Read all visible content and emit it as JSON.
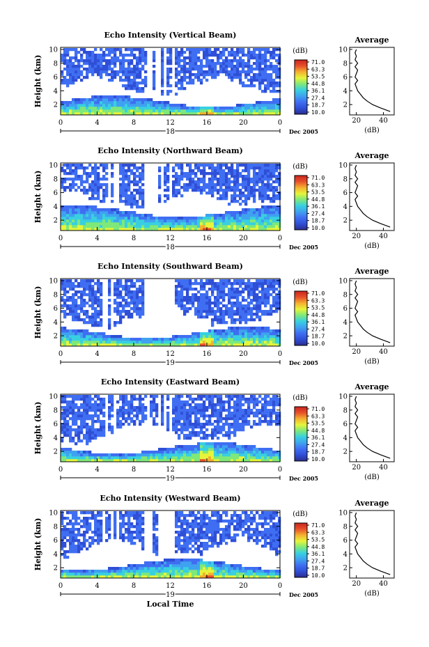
{
  "chart_data": [
    {
      "type": "heatmap",
      "title": "Echo Intensity (Vertical Beam)",
      "ylabel": "Height (km)",
      "ylim": [
        0.5,
        10.3
      ],
      "xlim": [
        0,
        24
      ],
      "x_ticks": [
        "0",
        "4",
        "8",
        "12",
        "16",
        "20",
        "0"
      ],
      "y_ticks": [
        "2",
        "4",
        "6",
        "8",
        "10"
      ],
      "day_label": "18",
      "date_label": "Dec 2005",
      "colorbar": {
        "unit": "(dB)",
        "ticks": [
          "71.0",
          "63.3",
          "53.5",
          "44.8",
          "36.1",
          "27.4",
          "18.7",
          "10.0"
        ]
      },
      "average": {
        "title": "Average",
        "xlabel": "(dB)",
        "x_ticks": [
          "20",
          "40"
        ],
        "y_ticks": [
          "2",
          "4",
          "6",
          "8",
          "10"
        ]
      }
    },
    {
      "type": "heatmap",
      "title": "Echo Intensity (Northward Beam)",
      "ylabel": "Height (km)",
      "ylim": [
        0.5,
        10.3
      ],
      "xlim": [
        0,
        24
      ],
      "x_ticks": [
        "0",
        "4",
        "8",
        "12",
        "16",
        "20",
        "0"
      ],
      "y_ticks": [
        "2",
        "4",
        "6",
        "8",
        "10"
      ],
      "day_label": "18",
      "date_label": "Dec 2005",
      "colorbar": {
        "unit": "(dB)",
        "ticks": [
          "71.0",
          "63.3",
          "53.5",
          "44.8",
          "36.1",
          "27.4",
          "18.7",
          "10.0"
        ]
      },
      "average": {
        "title": "Average",
        "xlabel": "(dB)",
        "x_ticks": [
          "20",
          "40"
        ],
        "y_ticks": [
          "2",
          "4",
          "6",
          "8",
          "10"
        ]
      }
    },
    {
      "type": "heatmap",
      "title": "Echo Intensity (Southward Beam)",
      "ylabel": "Height (km)",
      "ylim": [
        0.5,
        10.3
      ],
      "xlim": [
        0,
        24
      ],
      "x_ticks": [
        "0",
        "4",
        "8",
        "12",
        "16",
        "20",
        "0"
      ],
      "y_ticks": [
        "2",
        "4",
        "6",
        "8",
        "10"
      ],
      "day_label": "19",
      "date_label": "Dec 2005",
      "colorbar": {
        "unit": "(dB)",
        "ticks": [
          "71.0",
          "63.3",
          "53.5",
          "44.8",
          "36.1",
          "27.4",
          "18.7",
          "10.0"
        ]
      },
      "average": {
        "title": "Average",
        "xlabel": "(dB)",
        "x_ticks": [
          "20",
          "40"
        ],
        "y_ticks": [
          "2",
          "4",
          "6",
          "8",
          "10"
        ]
      }
    },
    {
      "type": "heatmap",
      "title": "Echo Intensity (Eastward Beam)",
      "ylabel": "Height (km)",
      "ylim": [
        0.5,
        10.3
      ],
      "xlim": [
        0,
        24
      ],
      "x_ticks": [
        "0",
        "4",
        "8",
        "12",
        "16",
        "20",
        "0"
      ],
      "y_ticks": [
        "2",
        "4",
        "6",
        "8",
        "10"
      ],
      "day_label": "19",
      "date_label": "Dec 2005",
      "colorbar": {
        "unit": "(dB)",
        "ticks": [
          "71.0",
          "63.3",
          "53.5",
          "44.8",
          "36.1",
          "27.4",
          "18.7",
          "10.0"
        ]
      },
      "average": {
        "title": "Average",
        "xlabel": "(dB)",
        "x_ticks": [
          "20",
          "40"
        ],
        "y_ticks": [
          "2",
          "4",
          "6",
          "8",
          "10"
        ]
      }
    },
    {
      "type": "heatmap",
      "title": "Echo Intensity (Westward Beam)",
      "ylabel": "Height (km)",
      "ylim": [
        0.5,
        10.3
      ],
      "xlim": [
        0,
        24
      ],
      "x_ticks": [
        "0",
        "4",
        "8",
        "12",
        "16",
        "20",
        "0"
      ],
      "y_ticks": [
        "2",
        "4",
        "6",
        "8",
        "10"
      ],
      "day_label": "19",
      "date_label": "Dec 2005",
      "xlabel": "Local Time",
      "colorbar": {
        "unit": "(dB)",
        "ticks": [
          "71.0",
          "63.3",
          "53.5",
          "44.8",
          "36.1",
          "27.4",
          "18.7",
          "10.0"
        ]
      },
      "average": {
        "title": "Average",
        "xlabel": "(dB)",
        "x_ticks": [
          "20",
          "40"
        ],
        "y_ticks": [
          "2",
          "4",
          "6",
          "8",
          "10"
        ]
      }
    }
  ],
  "average_profile": {
    "height_km": [
      1.0,
      1.5,
      2.0,
      2.5,
      3.0,
      3.5,
      4.0,
      4.5,
      5.0,
      5.5,
      6.0,
      6.5,
      7.0,
      7.5,
      8.0,
      8.5,
      9.0,
      9.5,
      10.0
    ],
    "db": [
      45,
      38,
      32,
      28,
      25,
      23,
      21,
      20,
      19,
      21,
      19,
      20,
      21,
      19,
      21,
      19,
      20,
      19,
      20
    ]
  },
  "colormap": [
    "#2b2d8f",
    "#2f4fd6",
    "#3f6ef2",
    "#3fa2f0",
    "#38d0e0",
    "#7fe87a",
    "#e6f53a",
    "#f5b030",
    "#e8502a",
    "#c9241f"
  ]
}
